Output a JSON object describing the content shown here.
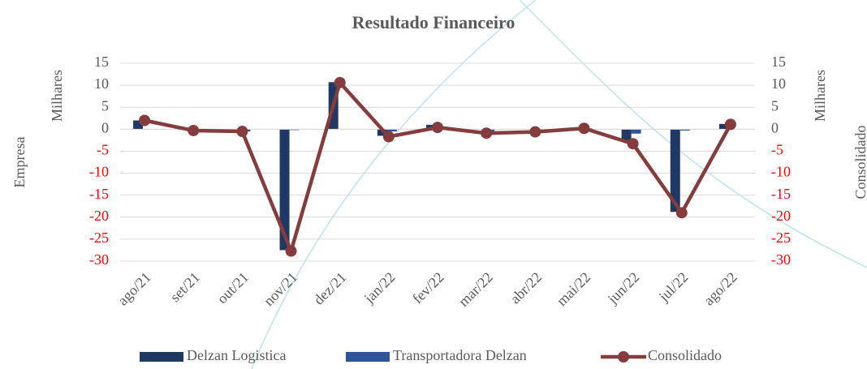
{
  "chart_data": {
    "type": "bar-line",
    "title": "Resultado Financeiro",
    "y_axis_title": "Empresa",
    "y2_axis_title": "Consolidado",
    "y_display_units": "Milhares",
    "y2_display_units": "Milhares",
    "categories": [
      "ago/21",
      "set/21",
      "out/21",
      "nov/21",
      "dez/21",
      "jan/22",
      "fev/22",
      "mar/22",
      "abr/22",
      "mai/22",
      "jun/22",
      "jul/22",
      "ago/22"
    ],
    "series": [
      {
        "name": "Delzan Logistica",
        "type": "bar",
        "color": "#1f3864",
        "values": [
          2,
          0,
          0,
          -27.5,
          10.7,
          -1.5,
          1,
          0,
          0,
          0,
          -2.5,
          -18.8,
          1.2
        ]
      },
      {
        "name": "Transportadora Delzan",
        "type": "bar",
        "color": "#2f5597",
        "values": [
          0,
          -0.3,
          -0.5,
          -0.2,
          0,
          -0.5,
          0,
          -0.9,
          -0.6,
          0.2,
          -1,
          -0.3,
          0
        ]
      },
      {
        "name": "Consolidado",
        "type": "line",
        "axis": "y2",
        "color": "#843c3c",
        "values": [
          2,
          -0.3,
          -0.5,
          -27.7,
          10.6,
          -1.7,
          0.4,
          -0.9,
          -0.6,
          0.2,
          -3.3,
          -19,
          1.1
        ]
      }
    ],
    "ylim": [
      -30,
      15
    ],
    "yticks": [
      15,
      10,
      5,
      0,
      -5,
      -10,
      -15,
      -20,
      -25,
      -30
    ],
    "y2lim": [
      -30,
      15
    ],
    "y2ticks": [
      15,
      10,
      5,
      0,
      -5,
      -10,
      -15,
      -20,
      -25,
      -30
    ],
    "negative_tick_color": "#ff0000",
    "grid": true,
    "legend": "bottom"
  }
}
